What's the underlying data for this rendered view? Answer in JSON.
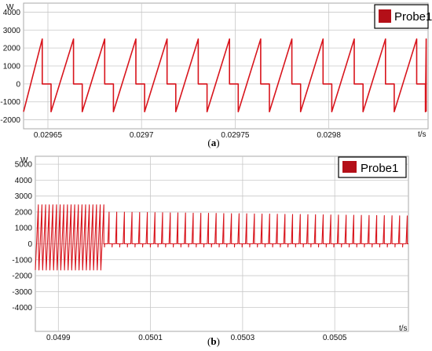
{
  "chart_data": [
    {
      "type": "line",
      "caption_letter": "a",
      "x_unit": "t/s",
      "y_unit": "W",
      "xlim": [
        0.029637,
        0.029853
      ],
      "ylim": [
        -2500,
        4500
      ],
      "x_ticks": [
        0.02965,
        0.0297,
        0.02975,
        0.0298
      ],
      "x_tick_labels": [
        "0.02965",
        "0.0297",
        "0.02975",
        "0.0298"
      ],
      "y_ticks": [
        4000,
        3000,
        2000,
        1000,
        0,
        -1000,
        -2000
      ],
      "y_tick_labels": [
        "4000",
        "3000",
        "2000",
        "1000",
        "0",
        "-1000",
        "-2000"
      ],
      "grid": true,
      "legend": "top-right",
      "series": [
        {
          "name": "Probe1",
          "color": "#d8141c",
          "waveform": "sawtooth",
          "period": 1.666e-05,
          "first_rise_start": 0.029635,
          "peak": 2500,
          "trough": -1550,
          "zero_hold_fraction": 0.28,
          "end_x": 0.029852
        }
      ]
    },
    {
      "type": "line",
      "caption_letter": "b",
      "x_unit": "t/s",
      "y_unit": "W",
      "xlim": [
        0.04985,
        0.05066
      ],
      "ylim": [
        -5500,
        5500
      ],
      "x_ticks": [
        0.0499,
        0.0501,
        0.0503,
        0.0505
      ],
      "x_tick_labels": [
        "0.0499",
        "0.0501",
        "0.0503",
        "0.0505"
      ],
      "y_ticks": [
        5000,
        4000,
        3000,
        2000,
        1000,
        0,
        -1000,
        -2000,
        -3000,
        -4000
      ],
      "y_tick_labels": [
        "5000",
        "4000",
        "3000",
        "2000",
        "1000",
        "0",
        "-1000",
        "-2000",
        "-3000",
        "-4000"
      ],
      "grid": true,
      "legend": "top-right",
      "series": [
        {
          "name": "Probe1",
          "color": "#d8141c",
          "segments": [
            {
              "from": 0.04985,
              "to": 0.05,
              "waveform": "sawtooth",
              "period": 7.9e-06,
              "peak": 2450,
              "trough": -1650
            },
            {
              "from": 0.05,
              "to": 0.05066,
              "waveform": "pulse",
              "period": 1.66e-05,
              "peak_start": 2000,
              "peak_end": 1750,
              "trough": -200
            }
          ]
        }
      ]
    }
  ]
}
